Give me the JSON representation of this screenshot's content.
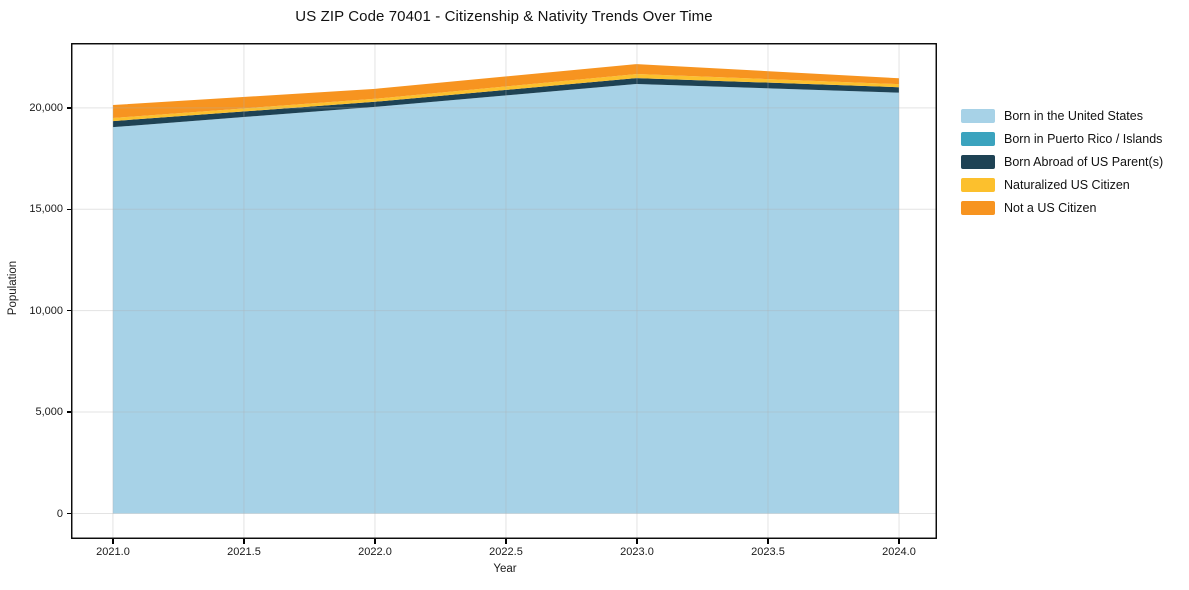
{
  "title": "US ZIP Code 70401 - Citizenship & Nativity Trends Over Time",
  "chart_data": {
    "type": "area",
    "stacked": true,
    "title": "US ZIP Code 70401 - Citizenship & Nativity Trends Over Time",
    "xlabel": "Year",
    "ylabel": "Population",
    "x": [
      2021,
      2022,
      2023,
      2024
    ],
    "series": [
      {
        "name": "Born in the United States",
        "color": "#A7D2E7",
        "values": [
          19050,
          20050,
          21180,
          20750
        ]
      },
      {
        "name": "Born in Puerto Rico / Islands",
        "color": "#3BA3BE",
        "values": [
          0,
          0,
          0,
          0
        ]
      },
      {
        "name": "Born Abroad of US Parent(s)",
        "color": "#1E4254",
        "values": [
          300,
          250,
          290,
          270
        ]
      },
      {
        "name": "Naturalized US Citizen",
        "color": "#FCC02D",
        "values": [
          150,
          150,
          200,
          150
        ]
      },
      {
        "name": "Not a US Citizen",
        "color": "#F79420",
        "values": [
          640,
          490,
          490,
          290
        ]
      }
    ],
    "stacked_totals": [
      20140,
      20940,
      22160,
      21460
    ],
    "x_ticks": [
      "2021.0",
      "2021.5",
      "2022.0",
      "2022.5",
      "2023.0",
      "2023.5",
      "2024.0"
    ],
    "x_tick_values": [
      2021.0,
      2021.5,
      2022.0,
      2022.5,
      2023.0,
      2023.5,
      2024.0
    ],
    "y_ticks": [
      "0",
      "5,000",
      "10,000",
      "15,000",
      "20,000"
    ],
    "y_tick_values": [
      0,
      5000,
      10000,
      15000,
      20000
    ],
    "xlim": [
      2020.84,
      2024.145
    ],
    "ylim": [
      -1260,
      23200
    ],
    "grid": true,
    "legend_position": "right"
  }
}
